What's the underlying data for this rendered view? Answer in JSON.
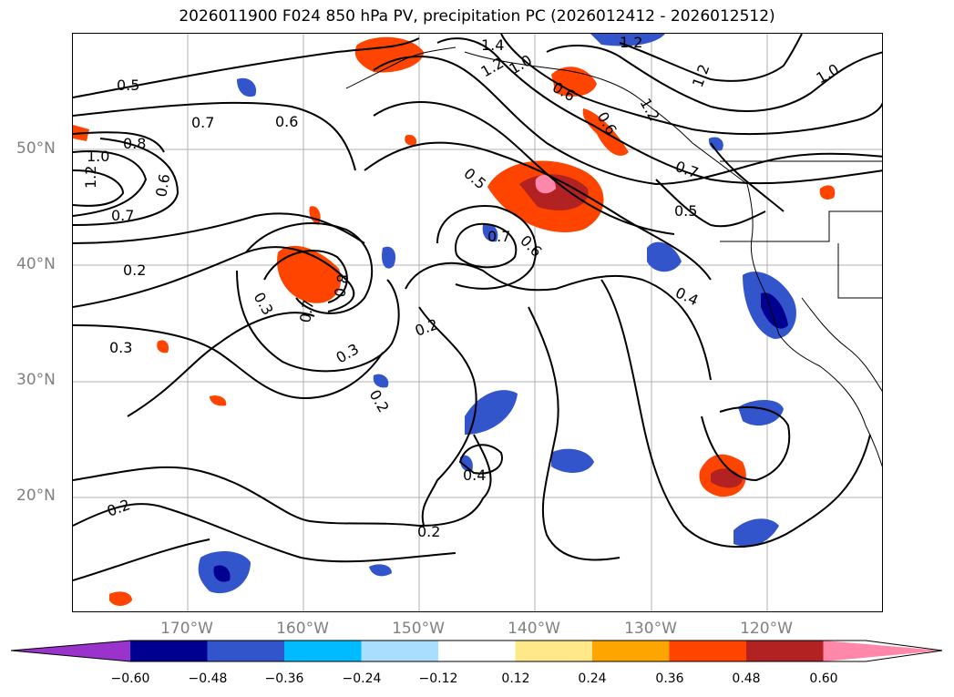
{
  "title": "2026011900 F024 850 hPa PV, precipitation PC (2026012412 - 2026012512)",
  "lat_labels": [
    "50°N",
    "40°N",
    "30°N",
    "20°N"
  ],
  "lon_labels": [
    "170°W",
    "160°W",
    "150°W",
    "140°W",
    "130°W",
    "120°W"
  ],
  "contour_labels": {
    "l_05a": "0.5",
    "l_07a": "0.7",
    "l_06a": "0.6",
    "l_08": "0.8",
    "l_10a": "1.0",
    "l_12a": "1.2",
    "l_07b": "0.7",
    "l_06b": "0.6",
    "l_02a": "0.2",
    "l_03a": "0.3",
    "l_03b": "0.3",
    "l_07c": "0.7",
    "l_08b": "0.8",
    "l_03c": "0.3",
    "l_02b": "0.2",
    "l_02c": "0.2",
    "l_02d": "0.2",
    "l_02e": "0.2",
    "l_04a": "0.4",
    "l_05b": "0.5",
    "l_07d": "0.7",
    "l_06c": "0.6",
    "l_05c": "0.5",
    "l_04b": "0.4",
    "l_14": "1.4",
    "l_12b": "1.2",
    "l_10b": "1.0",
    "l_06d": "0.6",
    "l_06e": "0.6",
    "l_07e": "0.7",
    "l_12c": "1.2",
    "l_12d": "1.2",
    "l_10c": "1.0",
    "l_12e": "1.2"
  },
  "colorbar": {
    "ticks": [
      "−0.60",
      "−0.48",
      "−0.36",
      "−0.24",
      "−0.12",
      "0.12",
      "0.24",
      "0.36",
      "0.48",
      "0.60"
    ],
    "colors": [
      "#9933cc",
      "#000090",
      "#3355cc",
      "#00bbff",
      "#aadeff",
      "#ffffff",
      "#ffe88a",
      "#ffa500",
      "#ff4400",
      "#b22222",
      "#ff88aa"
    ]
  }
}
